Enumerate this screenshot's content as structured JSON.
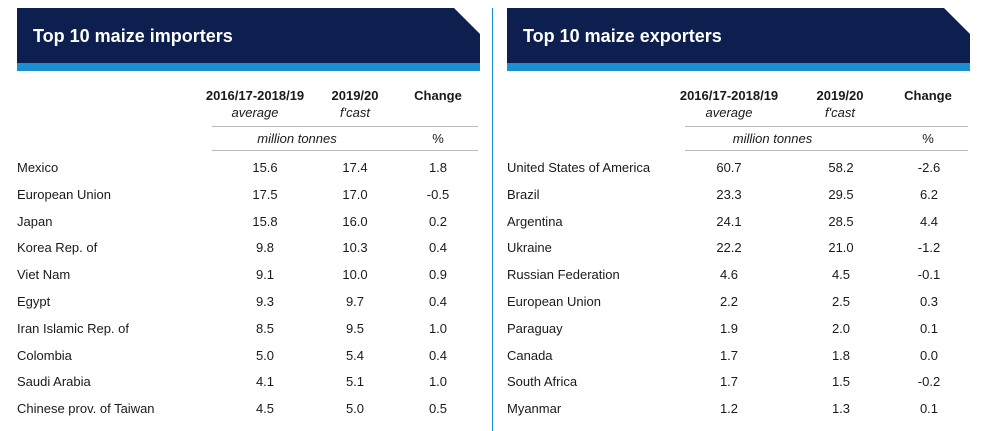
{
  "importers": {
    "title": "Top 10 maize importers",
    "col1_line1": "2016/17-2018/19",
    "col1_line2": "average",
    "col2_line1": "2019/20",
    "col2_line2": "f'cast",
    "col3": "Change",
    "unit": "million tonnes",
    "pct": "%",
    "rows": [
      {
        "country": "Mexico",
        "avg": "15.6",
        "fcast": "17.4",
        "change": "1.8"
      },
      {
        "country": "European Union",
        "avg": "17.5",
        "fcast": "17.0",
        "change": "-0.5"
      },
      {
        "country": "Japan",
        "avg": "15.8",
        "fcast": "16.0",
        "change": "0.2"
      },
      {
        "country": "Korea Rep. of",
        "avg": "9.8",
        "fcast": "10.3",
        "change": "0.4"
      },
      {
        "country": "Viet Nam",
        "avg": "9.1",
        "fcast": "10.0",
        "change": "0.9"
      },
      {
        "country": "Egypt",
        "avg": "9.3",
        "fcast": "9.7",
        "change": "0.4"
      },
      {
        "country": "Iran Islamic Rep. of",
        "avg": "8.5",
        "fcast": "9.5",
        "change": "1.0"
      },
      {
        "country": "Colombia",
        "avg": "5.0",
        "fcast": "5.4",
        "change": "0.4"
      },
      {
        "country": "Saudi Arabia",
        "avg": "4.1",
        "fcast": "5.1",
        "change": "1.0"
      },
      {
        "country": "Chinese prov. of Taiwan",
        "avg": "4.5",
        "fcast": "5.0",
        "change": "0.5"
      }
    ]
  },
  "exporters": {
    "title": "Top 10 maize exporters",
    "col1_line1": "2016/17-2018/19",
    "col1_line2": "average",
    "col2_line1": "2019/20",
    "col2_line2": "f'cast",
    "col3": "Change",
    "unit": "million tonnes",
    "pct": "%",
    "rows": [
      {
        "country": "United States of America",
        "avg": "60.7",
        "fcast": "58.2",
        "change": "-2.6"
      },
      {
        "country": "Brazil",
        "avg": "23.3",
        "fcast": "29.5",
        "change": "6.2"
      },
      {
        "country": "Argentina",
        "avg": "24.1",
        "fcast": "28.5",
        "change": "4.4"
      },
      {
        "country": "Ukraine",
        "avg": "22.2",
        "fcast": "21.0",
        "change": "-1.2"
      },
      {
        "country": "Russian Federation",
        "avg": "4.6",
        "fcast": "4.5",
        "change": "-0.1"
      },
      {
        "country": "European Union",
        "avg": "2.2",
        "fcast": "2.5",
        "change": "0.3"
      },
      {
        "country": "Paraguay",
        "avg": "1.9",
        "fcast": "2.0",
        "change": "0.1"
      },
      {
        "country": "Canada",
        "avg": "1.7",
        "fcast": "1.8",
        "change": "0.0"
      },
      {
        "country": "South Africa",
        "avg": "1.7",
        "fcast": "1.5",
        "change": "-0.2"
      },
      {
        "country": "Myanmar",
        "avg": "1.2",
        "fcast": "1.3",
        "change": "0.1"
      }
    ]
  },
  "colors": {
    "banner": "#0d1f4f",
    "accent": "#1b8fd0",
    "rule": "#b9b9b9"
  }
}
